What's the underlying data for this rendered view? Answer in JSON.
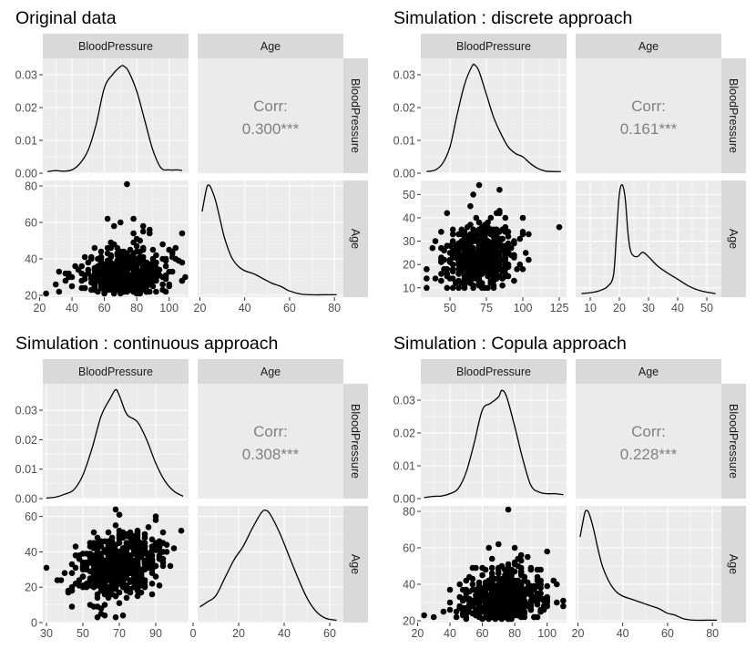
{
  "colors": {
    "panel_bg": "#ebebeb",
    "grid": "#ffffff",
    "strip_bg": "#d9d9d9",
    "ink": "#000000",
    "axis_text": "#4d4d4d",
    "corr_text": "#808080"
  },
  "chart_data": [
    {
      "type": "pairs",
      "title": "Original data",
      "strip_labels": [
        "BloodPressure",
        "Age"
      ],
      "density_bp": {
        "xlim": [
          22,
          112
        ],
        "ylim": [
          0,
          0.035
        ],
        "yticks": [
          0.0,
          0.01,
          0.02,
          0.03
        ],
        "ytick_labels": [
          "0.00",
          "0.01",
          "0.02",
          "0.03"
        ],
        "x": [
          25,
          30,
          35,
          40,
          45,
          50,
          55,
          60,
          65,
          70,
          72,
          75,
          80,
          85,
          90,
          95,
          100,
          105,
          108
        ],
        "y": [
          0.0005,
          0.0008,
          0.0006,
          0.001,
          0.003,
          0.007,
          0.015,
          0.026,
          0.03,
          0.0325,
          0.0326,
          0.031,
          0.025,
          0.016,
          0.007,
          0.0016,
          0.001,
          0.001,
          0.0008
        ]
      },
      "corr": {
        "label": "Corr:",
        "value": "0.300***"
      },
      "scatter": {
        "xlim": [
          22,
          112
        ],
        "ylim": [
          19,
          83
        ],
        "xticks": [
          20,
          40,
          60,
          80,
          100
        ],
        "xtick_labels": [
          "20",
          "40",
          "60",
          "80",
          "100"
        ],
        "yticks": [
          20,
          40,
          60,
          80
        ],
        "ytick_labels": [
          "20",
          "40",
          "60",
          "80"
        ],
        "x_center": 72,
        "x_sd": 12,
        "y_min": 21,
        "y_mode": 24,
        "y_max": 81,
        "corr": 0.3,
        "n": 520,
        "points": [
          [
            24,
            21
          ],
          [
            30,
            26
          ],
          [
            32,
            33
          ],
          [
            36,
            28
          ],
          [
            38,
            32
          ],
          [
            44,
            34
          ],
          [
            74,
            81
          ],
          [
            62,
            62
          ],
          [
            66,
            58
          ],
          [
            78,
            62
          ],
          [
            84,
            58
          ],
          [
            100,
            45
          ],
          [
            104,
            46
          ],
          [
            108,
            54
          ],
          [
            96,
            48
          ],
          [
            108,
            28
          ],
          [
            40,
            30
          ],
          [
            46,
            36
          ],
          [
            48,
            41
          ],
          [
            92,
            42
          ],
          [
            88,
            56
          ],
          [
            70,
            60
          ]
        ]
      },
      "density_age": {
        "xlim": [
          19,
          84
        ],
        "ylim": [
          0,
          0.075
        ],
        "xticks": [
          20,
          40,
          60,
          80
        ],
        "xtick_labels": [
          "20",
          "40",
          "60",
          "80"
        ],
        "x": [
          21,
          23,
          24,
          25,
          27,
          29,
          31,
          34,
          37,
          40,
          44,
          48,
          52,
          56,
          60,
          65,
          70,
          75,
          81
        ],
        "y": [
          0.055,
          0.07,
          0.072,
          0.07,
          0.062,
          0.05,
          0.038,
          0.026,
          0.02,
          0.017,
          0.015,
          0.012,
          0.009,
          0.007,
          0.004,
          0.002,
          0.0015,
          0.0015,
          0.0015
        ]
      }
    },
    {
      "type": "pairs",
      "title": "Simulation : discrete approach",
      "strip_labels": [
        "BloodPressure",
        "Age"
      ],
      "density_bp": {
        "xlim": [
          30,
          130
        ],
        "ylim": [
          0,
          0.035
        ],
        "yticks": [
          0.0,
          0.01,
          0.02,
          0.03
        ],
        "ytick_labels": [
          "0.00",
          "0.01",
          "0.02",
          "0.03"
        ],
        "x": [
          34,
          40,
          45,
          50,
          55,
          60,
          65,
          67,
          70,
          75,
          80,
          85,
          90,
          95,
          100,
          105,
          110,
          115,
          120,
          126
        ],
        "y": [
          0.0005,
          0.001,
          0.003,
          0.008,
          0.018,
          0.027,
          0.0325,
          0.033,
          0.031,
          0.024,
          0.017,
          0.012,
          0.008,
          0.006,
          0.005,
          0.003,
          0.0015,
          0.0007,
          0.0005,
          0.0005
        ]
      },
      "corr": {
        "label": "Corr:",
        "value": "0.161***"
      },
      "scatter": {
        "xlim": [
          30,
          130
        ],
        "ylim": [
          6,
          56
        ],
        "xticks": [
          50,
          75,
          100,
          125
        ],
        "xtick_labels": [
          "50",
          "75",
          "100",
          "125"
        ],
        "yticks": [
          10,
          20,
          30,
          40,
          50
        ],
        "ytick_labels": [
          "10",
          "20",
          "30",
          "40",
          "50"
        ],
        "x_center": 70,
        "x_sd": 12,
        "y_min": 10,
        "y_mode": 24,
        "y_max": 54,
        "corr": 0.16,
        "n": 520,
        "points": [
          [
            34,
            18
          ],
          [
            125,
            36
          ],
          [
            70,
            54
          ],
          [
            84,
            52
          ],
          [
            66,
            50
          ],
          [
            48,
            42
          ],
          [
            100,
            40
          ],
          [
            54,
            12
          ],
          [
            80,
            10
          ],
          [
            104,
            22
          ],
          [
            96,
            18
          ],
          [
            40,
            30
          ],
          [
            44,
            34
          ]
        ]
      },
      "density_age": {
        "xlim": [
          5,
          55
        ],
        "ylim": [
          0,
          0.13
        ],
        "xticks": [
          10,
          20,
          30,
          40,
          50
        ],
        "xtick_labels": [
          "10",
          "20",
          "30",
          "40",
          "50"
        ],
        "x": [
          7,
          10,
          13,
          16,
          18,
          19,
          20,
          21,
          22,
          23,
          24,
          26,
          28,
          30,
          33,
          36,
          40,
          44,
          48,
          53
        ],
        "y": [
          0.004,
          0.005,
          0.007,
          0.012,
          0.025,
          0.07,
          0.115,
          0.125,
          0.11,
          0.07,
          0.05,
          0.045,
          0.05,
          0.045,
          0.035,
          0.028,
          0.02,
          0.012,
          0.007,
          0.004
        ]
      }
    },
    {
      "type": "pairs",
      "title": "Simulation : continuous approach",
      "strip_labels": [
        "BloodPressure",
        "Age"
      ],
      "density_bp": {
        "xlim": [
          28,
          108
        ],
        "ylim": [
          0,
          0.039
        ],
        "yticks": [
          0.0,
          0.01,
          0.02,
          0.03
        ],
        "ytick_labels": [
          "0.00",
          "0.01",
          "0.02",
          "0.03"
        ],
        "x": [
          30,
          35,
          40,
          45,
          50,
          55,
          60,
          65,
          68,
          70,
          73,
          75,
          80,
          85,
          90,
          95,
          100,
          105
        ],
        "y": [
          0.0002,
          0.0005,
          0.0015,
          0.003,
          0.008,
          0.017,
          0.028,
          0.034,
          0.037,
          0.035,
          0.03,
          0.028,
          0.026,
          0.02,
          0.012,
          0.006,
          0.0025,
          0.0008
        ]
      },
      "corr": {
        "label": "Corr:",
        "value": "0.308***"
      },
      "scatter": {
        "xlim": [
          28,
          108
        ],
        "ylim": [
          0,
          66
        ],
        "xticks": [
          30,
          50,
          70,
          90
        ],
        "xtick_labels": [
          "30",
          "50",
          "70",
          "90"
        ],
        "yticks": [
          0,
          20,
          40,
          60
        ],
        "ytick_labels": [
          "0",
          "20",
          "40",
          "60"
        ],
        "x_center": 70,
        "x_sd": 11,
        "y_min": 3,
        "y_mode": 32,
        "y_max": 64,
        "corr": 0.31,
        "n": 620,
        "points": [
          [
            30,
            31
          ],
          [
            68,
            64
          ],
          [
            104,
            52
          ],
          [
            100,
            42
          ],
          [
            40,
            28
          ],
          [
            36,
            24
          ],
          [
            44,
            18
          ],
          [
            62,
            4
          ],
          [
            72,
            4
          ],
          [
            96,
            40
          ]
        ]
      },
      "density_age": {
        "xlim": [
          2,
          66
        ],
        "ylim": [
          0,
          0.052
        ],
        "xticks": [
          0,
          20,
          40,
          60
        ],
        "xtick_labels": [
          "0",
          "20",
          "40",
          "60"
        ],
        "x": [
          3,
          6,
          10,
          14,
          18,
          22,
          26,
          30,
          32,
          34,
          38,
          42,
          46,
          50,
          54,
          58,
          63
        ],
        "y": [
          0.007,
          0.009,
          0.012,
          0.02,
          0.028,
          0.034,
          0.042,
          0.049,
          0.05,
          0.048,
          0.04,
          0.03,
          0.02,
          0.011,
          0.005,
          0.002,
          0.001
        ]
      }
    },
    {
      "type": "pairs",
      "title": "Simulation : Copula approach",
      "strip_labels": [
        "BloodPressure",
        "Age"
      ],
      "density_bp": {
        "xlim": [
          22,
          112
        ],
        "ylim": [
          0,
          0.035
        ],
        "yticks": [
          0.0,
          0.01,
          0.02,
          0.03
        ],
        "ytick_labels": [
          "0.00",
          "0.01",
          "0.02",
          "0.03"
        ],
        "x": [
          24,
          30,
          35,
          40,
          45,
          50,
          55,
          60,
          65,
          70,
          72,
          75,
          80,
          85,
          90,
          95,
          100,
          105,
          110
        ],
        "y": [
          0.0003,
          0.0007,
          0.0008,
          0.0015,
          0.003,
          0.008,
          0.017,
          0.027,
          0.029,
          0.031,
          0.033,
          0.031,
          0.022,
          0.012,
          0.004,
          0.002,
          0.0015,
          0.0015,
          0.0012
        ]
      },
      "corr": {
        "label": "Corr:",
        "value": "0.228***"
      },
      "scatter": {
        "xlim": [
          22,
          112
        ],
        "ylim": [
          19,
          83
        ],
        "xticks": [
          20,
          40,
          60,
          80,
          100
        ],
        "xtick_labels": [
          "20",
          "40",
          "60",
          "80",
          "100"
        ],
        "yticks": [
          20,
          40,
          60,
          80
        ],
        "ytick_labels": [
          "20",
          "40",
          "60",
          "80"
        ],
        "x_center": 72,
        "x_sd": 12,
        "y_min": 21,
        "y_mode": 24,
        "y_max": 81,
        "corr": 0.23,
        "n": 620,
        "points": [
          [
            24,
            23
          ],
          [
            30,
            22
          ],
          [
            76,
            81
          ],
          [
            110,
            31
          ],
          [
            110,
            28
          ],
          [
            106,
            30
          ],
          [
            64,
            60
          ],
          [
            70,
            62
          ],
          [
            80,
            60
          ],
          [
            46,
            40
          ],
          [
            50,
            42
          ],
          [
            40,
            30
          ],
          [
            96,
            40
          ],
          [
            84,
            56
          ],
          [
            90,
            49
          ]
        ]
      },
      "density_age": {
        "xlim": [
          19,
          84
        ],
        "ylim": [
          0,
          0.075
        ],
        "xticks": [
          20,
          40,
          60,
          80
        ],
        "xtick_labels": [
          "20",
          "40",
          "60",
          "80"
        ],
        "x": [
          21,
          23,
          24,
          25,
          27,
          29,
          31,
          34,
          37,
          40,
          44,
          48,
          52,
          56,
          60,
          63,
          67,
          72,
          78,
          82
        ],
        "y": [
          0.055,
          0.07,
          0.072,
          0.07,
          0.06,
          0.047,
          0.036,
          0.026,
          0.02,
          0.017,
          0.015,
          0.013,
          0.011,
          0.009,
          0.006,
          0.005,
          0.0025,
          0.0015,
          0.0015,
          0.0015
        ]
      }
    }
  ]
}
